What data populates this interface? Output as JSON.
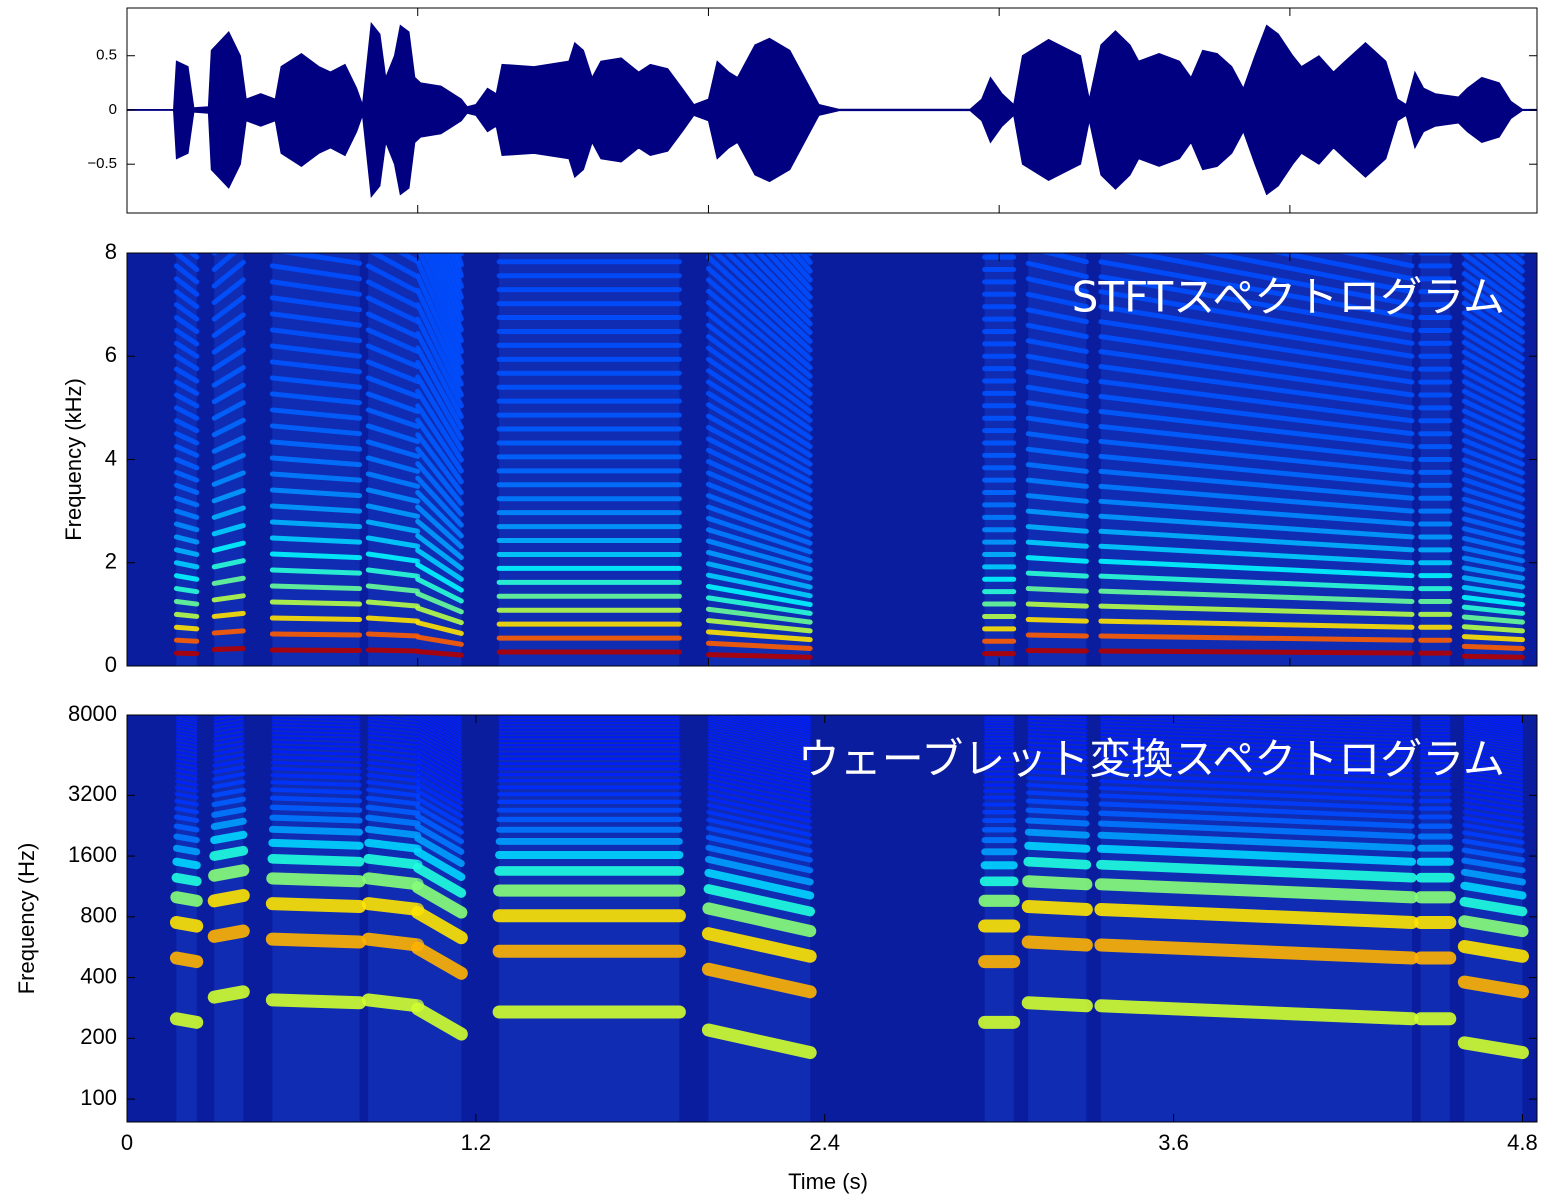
{
  "chart_data": [
    {
      "type": "area",
      "color": "#000080",
      "xlim": [
        0,
        4.85
      ],
      "xticks": [
        1,
        2,
        3,
        4
      ],
      "ylim": [
        -0.95,
        0.94
      ],
      "yticks": [
        {
          "value": -0.5,
          "label": "−0.5"
        },
        0,
        0.5
      ],
      "x": [
        0,
        0.16,
        0.17,
        0.21,
        0.23,
        0.28,
        0.29,
        0.35,
        0.39,
        0.41,
        0.46,
        0.51,
        0.53,
        0.6,
        0.66,
        0.7,
        0.75,
        0.79,
        0.81,
        0.84,
        0.87,
        0.89,
        0.92,
        0.94,
        0.97,
        0.99,
        1.01,
        1.08,
        1.15,
        1.17,
        1.2,
        1.24,
        1.27,
        1.29,
        1.4,
        1.52,
        1.54,
        1.57,
        1.6,
        1.63,
        1.7,
        1.76,
        1.8,
        1.86,
        1.91,
        1.95,
        2.0,
        2.03,
        2.07,
        2.1,
        2.16,
        2.21,
        2.28,
        2.33,
        2.38,
        2.45,
        2.9,
        2.94,
        2.97,
        3.01,
        3.05,
        3.08,
        3.17,
        3.28,
        3.31,
        3.35,
        3.4,
        3.45,
        3.48,
        3.55,
        3.62,
        3.66,
        3.7,
        3.75,
        3.8,
        3.84,
        3.88,
        3.92,
        3.96,
        4.01,
        4.04,
        4.1,
        4.15,
        4.19,
        4.26,
        4.33,
        4.37,
        4.4,
        4.43,
        4.46,
        4.5,
        4.58,
        4.61,
        4.66,
        4.72,
        4.76,
        4.8,
        4.85
      ],
      "values": [
        0.004,
        0.004,
        0.45,
        0.4,
        0.02,
        0.03,
        0.55,
        0.72,
        0.5,
        0.1,
        0.15,
        0.1,
        0.4,
        0.52,
        0.4,
        0.35,
        0.42,
        0.2,
        0.05,
        0.8,
        0.7,
        0.3,
        0.5,
        0.78,
        0.72,
        0.3,
        0.25,
        0.22,
        0.1,
        0.03,
        0.05,
        0.2,
        0.15,
        0.42,
        0.4,
        0.45,
        0.62,
        0.55,
        0.3,
        0.45,
        0.48,
        0.35,
        0.42,
        0.38,
        0.2,
        0.05,
        0.1,
        0.45,
        0.35,
        0.3,
        0.6,
        0.66,
        0.55,
        0.3,
        0.05,
        0.006,
        0.006,
        0.1,
        0.3,
        0.15,
        0.05,
        0.5,
        0.65,
        0.5,
        0.1,
        0.6,
        0.73,
        0.6,
        0.45,
        0.52,
        0.45,
        0.3,
        0.55,
        0.52,
        0.4,
        0.2,
        0.5,
        0.78,
        0.7,
        0.5,
        0.4,
        0.5,
        0.35,
        0.45,
        0.62,
        0.45,
        0.1,
        0.05,
        0.35,
        0.2,
        0.15,
        0.12,
        0.2,
        0.3,
        0.25,
        0.08,
        0.005,
        0.005
      ]
    },
    {
      "type": "spectrogram",
      "colormap": "jet",
      "annotation": "STFTスペクトログラム",
      "ylabel": "Frequency (kHz)",
      "xlim": [
        0,
        4.85
      ],
      "xticks": [
        1,
        2,
        3,
        4
      ],
      "ylim": [
        0,
        8
      ],
      "yticks": [
        0,
        2,
        4,
        6,
        8
      ],
      "segments": [
        {
          "start": 0.17,
          "end": 0.24,
          "f0": 0.25,
          "f1": 0.24
        },
        {
          "start": 0.3,
          "end": 0.4,
          "f0": 0.32,
          "f1": 0.34
        },
        {
          "start": 0.5,
          "end": 0.8,
          "f0": 0.31,
          "f1": 0.3
        },
        {
          "start": 0.83,
          "end": 1.0,
          "f0": 0.31,
          "f1": 0.29
        },
        {
          "start": 1.0,
          "end": 1.15,
          "f0": 0.28,
          "f1": 0.21
        },
        {
          "start": 1.28,
          "end": 1.9,
          "f0": 0.27,
          "f1": 0.27
        },
        {
          "start": 2.0,
          "end": 2.35,
          "f0": 0.22,
          "f1": 0.17
        },
        {
          "start": 2.95,
          "end": 3.05,
          "f0": 0.24,
          "f1": 0.24
        },
        {
          "start": 3.1,
          "end": 3.3,
          "f0": 0.3,
          "f1": 0.29
        },
        {
          "start": 3.35,
          "end": 4.42,
          "f0": 0.29,
          "f1": 0.25
        },
        {
          "start": 4.45,
          "end": 4.55,
          "f0": 0.25,
          "f1": 0.25
        },
        {
          "start": 4.6,
          "end": 4.8,
          "f0": 0.19,
          "f1": 0.17
        }
      ]
    },
    {
      "type": "spectrogram",
      "colormap": "jet",
      "scale": "log",
      "annotation": "ウェーブレット変換スペクトログラム",
      "ylabel": "Frequency (Hz)",
      "xlabel": "Time (s)",
      "xlim": [
        0,
        4.85
      ],
      "xticks": [
        0,
        1.2,
        2.4,
        3.6,
        4.8
      ],
      "ylim": [
        77,
        8000
      ],
      "yticks": [
        100,
        200,
        400,
        800,
        1600,
        3200,
        8000
      ],
      "segments": [
        {
          "start": 0.17,
          "end": 0.24,
          "f0": 250,
          "f1": 240
        },
        {
          "start": 0.3,
          "end": 0.4,
          "f0": 320,
          "f1": 340
        },
        {
          "start": 0.5,
          "end": 0.8,
          "f0": 310,
          "f1": 300
        },
        {
          "start": 0.83,
          "end": 1.0,
          "f0": 310,
          "f1": 290
        },
        {
          "start": 1.0,
          "end": 1.15,
          "f0": 280,
          "f1": 210
        },
        {
          "start": 1.28,
          "end": 1.9,
          "f0": 270,
          "f1": 270
        },
        {
          "start": 2.0,
          "end": 2.35,
          "f0": 220,
          "f1": 170
        },
        {
          "start": 2.95,
          "end": 3.05,
          "f0": 240,
          "f1": 240
        },
        {
          "start": 3.1,
          "end": 3.3,
          "f0": 300,
          "f1": 290
        },
        {
          "start": 3.35,
          "end": 4.42,
          "f0": 290,
          "f1": 250
        },
        {
          "start": 4.45,
          "end": 4.55,
          "f0": 250,
          "f1": 250
        },
        {
          "start": 4.6,
          "end": 4.8,
          "f0": 190,
          "f1": 170
        }
      ]
    }
  ]
}
